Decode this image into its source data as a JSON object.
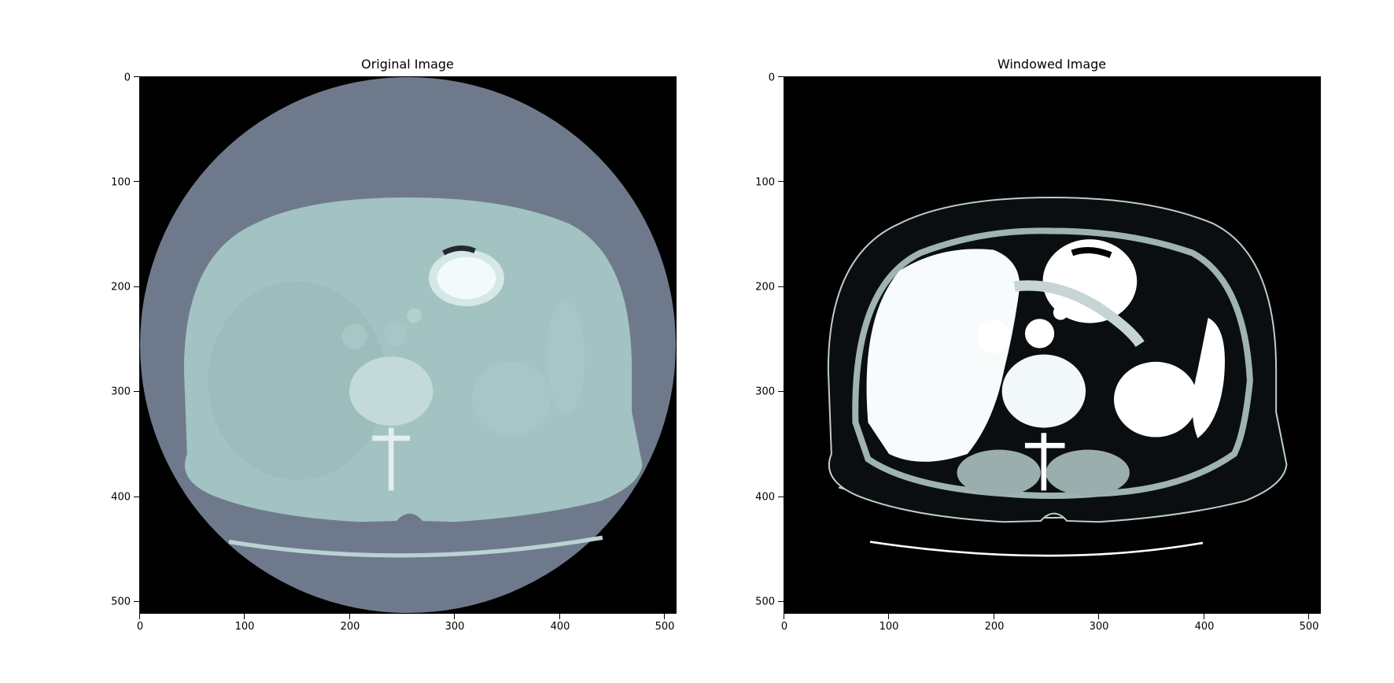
{
  "panels": [
    {
      "title": "Original Image",
      "x_ticks": [
        "0",
        "100",
        "200",
        "300",
        "400",
        "500"
      ],
      "y_ticks": [
        "0",
        "100",
        "200",
        "300",
        "400",
        "500"
      ]
    },
    {
      "title": "Windowed Image",
      "x_ticks": [
        "0",
        "100",
        "200",
        "300",
        "400",
        "500"
      ],
      "y_ticks": [
        "0",
        "100",
        "200",
        "300",
        "400",
        "500"
      ]
    }
  ],
  "image_size": [
    512,
    512
  ],
  "colors": {
    "original_fov": "#6e7a8c",
    "original_body": "#a3c2c2",
    "windowed_soft": "#ffffff",
    "windowed_muscle": "#9fb3b3",
    "background": "#000000"
  }
}
